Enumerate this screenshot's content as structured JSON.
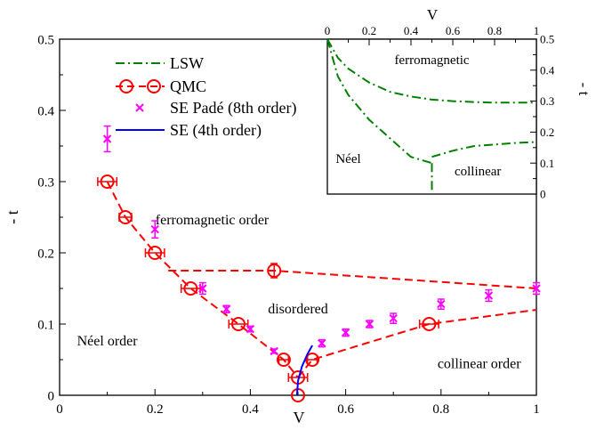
{
  "chart_data": [
    {
      "type": "scatter",
      "xlabel": "V",
      "ylabel": "- t",
      "xlim": [
        0,
        1
      ],
      "ylim": [
        0,
        0.5
      ],
      "xticks": [
        "0",
        "0.2",
        "0.4",
        "0.6",
        "0.8",
        "1"
      ],
      "yticks": [
        "0",
        "0.1",
        "0.2",
        "0.3",
        "0.4",
        "0.5"
      ],
      "grid": false,
      "legend_position": "upper-left",
      "legend": [
        "LSW",
        "QMC",
        "SE Padé (8th order)",
        "SE (4th order)"
      ],
      "colors": {
        "lsw": "#008000",
        "qmc": "#ff0000",
        "se_pade": "#ff00ff",
        "se4": "#0000ff"
      },
      "region_labels": [
        {
          "text": "ferromagnetic order",
          "x": 0.32,
          "y": 0.24
        },
        {
          "text": "disordered",
          "x": 0.5,
          "y": 0.115
        },
        {
          "text": "Néel order",
          "x": 0.1,
          "y": 0.07
        },
        {
          "text": "collinear order",
          "x": 0.88,
          "y": 0.038
        }
      ],
      "series": [
        {
          "name": "QMC",
          "marker": "open-circle",
          "line": "dashed",
          "points": [
            {
              "x": 0.1,
              "y": 0.3,
              "xerr": 0.02
            },
            {
              "x": 0.138,
              "y": 0.25,
              "xerr": 0.013
            },
            {
              "x": 0.2,
              "y": 0.2,
              "xerr": 0.02
            },
            {
              "x": 0.275,
              "y": 0.15,
              "xerr": 0.02
            },
            {
              "x": 0.375,
              "y": 0.1,
              "xerr": 0.02
            },
            {
              "x": 0.47,
              "y": 0.05,
              "xerr": 0.01
            },
            {
              "x": 0.5,
              "y": 0.025,
              "xerr": 0.02
            },
            {
              "x": 0.5,
              "y": 0.0
            },
            {
              "x": 0.53,
              "y": 0.05,
              "xerr": 0.01
            },
            {
              "x": 0.775,
              "y": 0.1,
              "xerr": 0.02
            },
            {
              "x": 0.45,
              "y": 0.175,
              "yerr": 0.01
            }
          ],
          "lines": [
            [
              [
                0.1,
                0.3
              ],
              [
                0.138,
                0.25
              ],
              [
                0.2,
                0.2
              ],
              [
                0.275,
                0.15
              ],
              [
                0.375,
                0.1
              ],
              [
                0.47,
                0.05
              ],
              [
                0.5,
                0.025
              ]
            ],
            [
              [
                0.5,
                0.025
              ],
              [
                0.53,
                0.05
              ],
              [
                0.775,
                0.1
              ],
              [
                1.0,
                0.12
              ]
            ],
            [
              [
                0.228,
                0.175
              ],
              [
                0.45,
                0.175
              ],
              [
                1.0,
                0.15
              ]
            ]
          ]
        },
        {
          "name": "SE Padé (8th order)",
          "marker": "x",
          "points": [
            {
              "x": 0.1,
              "y": 0.36,
              "yerr": 0.018
            },
            {
              "x": 0.2,
              "y": 0.233,
              "yerr": 0.012
            },
            {
              "x": 0.3,
              "y": 0.15,
              "yerr": 0.008
            },
            {
              "x": 0.35,
              "y": 0.121,
              "yerr": 0.005
            },
            {
              "x": 0.4,
              "y": 0.093,
              "yerr": 0.004
            },
            {
              "x": 0.45,
              "y": 0.062,
              "yerr": 0.003
            },
            {
              "x": 0.55,
              "y": 0.073,
              "yerr": 0.005
            },
            {
              "x": 0.6,
              "y": 0.088,
              "yerr": 0.005
            },
            {
              "x": 0.65,
              "y": 0.1,
              "yerr": 0.005
            },
            {
              "x": 0.7,
              "y": 0.108,
              "yerr": 0.007
            },
            {
              "x": 0.8,
              "y": 0.128,
              "yerr": 0.007
            },
            {
              "x": 0.9,
              "y": 0.14,
              "yerr": 0.008
            },
            {
              "x": 1.0,
              "y": 0.15,
              "yerr": 0.008
            }
          ]
        },
        {
          "name": "SE (4th order)",
          "line": "solid",
          "points": [
            {
              "x": 0.498,
              "y": 0.0
            },
            {
              "x": 0.5,
              "y": 0.02
            },
            {
              "x": 0.508,
              "y": 0.04
            },
            {
              "x": 0.52,
              "y": 0.058
            },
            {
              "x": 0.53,
              "y": 0.07
            }
          ]
        }
      ]
    },
    {
      "type": "line",
      "xlabel": "V",
      "ylabel": "- t",
      "xlim": [
        0,
        1
      ],
      "ylim": [
        0,
        0.5
      ],
      "xticks": [
        "0",
        "0.2",
        "0.4",
        "0.6",
        "0.8",
        "1"
      ],
      "yticks": [
        "0",
        "0.1",
        "0.2",
        "0.3",
        "0.4",
        "0.5"
      ],
      "grid": false,
      "region_labels": [
        {
          "text": "ferromagnetic",
          "x": 0.5,
          "y": 0.42
        },
        {
          "text": "Néel",
          "x": 0.1,
          "y": 0.1
        },
        {
          "text": "collinear",
          "x": 0.72,
          "y": 0.06
        }
      ],
      "series": [
        {
          "name": "LSW",
          "line": "dash-dot",
          "lines": [
            [
              [
                0.0,
                0.5
              ],
              [
                0.05,
                0.44
              ],
              [
                0.1,
                0.405
              ],
              [
                0.2,
                0.36
              ],
              [
                0.3,
                0.33
              ],
              [
                0.4,
                0.315
              ],
              [
                0.5,
                0.305
              ],
              [
                0.6,
                0.3
              ],
              [
                0.7,
                0.297
              ],
              [
                0.8,
                0.295
              ],
              [
                0.9,
                0.295
              ],
              [
                1.0,
                0.295
              ]
            ],
            [
              [
                0.0,
                0.5
              ],
              [
                0.05,
                0.38
              ],
              [
                0.1,
                0.32
              ],
              [
                0.2,
                0.24
              ],
              [
                0.3,
                0.18
              ],
              [
                0.4,
                0.12
              ],
              [
                0.5,
                0.1
              ]
            ],
            [
              [
                0.5,
                0.1
              ],
              [
                0.5,
                0.0
              ]
            ],
            [
              [
                0.5,
                0.12
              ],
              [
                0.6,
                0.14
              ],
              [
                0.7,
                0.155
              ],
              [
                0.8,
                0.16
              ],
              [
                0.9,
                0.165
              ],
              [
                1.0,
                0.168
              ]
            ]
          ]
        }
      ]
    }
  ]
}
